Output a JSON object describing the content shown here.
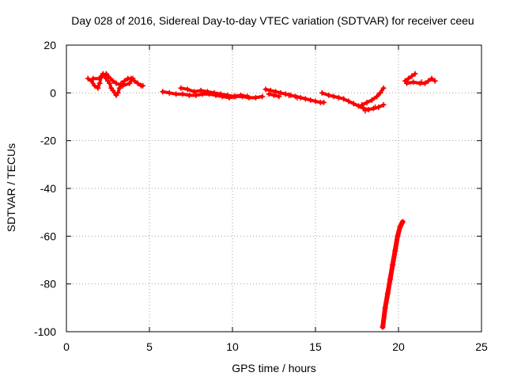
{
  "chart_data": {
    "type": "scatter",
    "title": "Day 028 of 2016, Sidereal Day-to-day VTEC variation (SDTVAR) for receiver ceeu",
    "xlabel": "GPS time / hours",
    "ylabel": "SDTVAR / TECUs",
    "xlim": [
      0,
      25
    ],
    "ylim": [
      -100,
      20
    ],
    "xticks": [
      "0",
      "5",
      "10",
      "15",
      "20",
      "25"
    ],
    "yticks": [
      "20",
      "0",
      "-20",
      "-40",
      "-60",
      "-80",
      "-100"
    ],
    "grid": true,
    "marker": "plus",
    "color": "#ff0000",
    "series": [
      {
        "points": [
          [
            1.3,
            6
          ],
          [
            1.5,
            5
          ],
          [
            1.7,
            3
          ],
          [
            1.9,
            2
          ],
          [
            2.0,
            4
          ],
          [
            2.1,
            7
          ],
          [
            2.2,
            8
          ],
          [
            2.3,
            7
          ],
          [
            2.4,
            6
          ],
          [
            2.5,
            5
          ],
          [
            2.6,
            4
          ],
          [
            2.7,
            2
          ],
          [
            2.8,
            1
          ],
          [
            3.0,
            -1
          ],
          [
            3.1,
            0
          ],
          [
            3.2,
            2
          ],
          [
            3.3,
            4
          ],
          [
            3.5,
            5
          ],
          [
            3.7,
            6
          ],
          [
            3.9,
            6
          ],
          [
            4.1,
            5
          ],
          [
            4.3,
            4
          ],
          [
            4.5,
            3
          ],
          [
            4.6,
            3
          ],
          [
            1.6,
            6
          ],
          [
            2.0,
            6
          ],
          [
            2.4,
            8
          ],
          [
            2.8,
            5
          ],
          [
            3.0,
            4
          ],
          [
            3.4,
            3
          ],
          [
            3.8,
            4
          ],
          [
            4.0,
            6
          ],
          [
            5.8,
            0.5
          ],
          [
            6.2,
            0
          ],
          [
            6.6,
            -0.5
          ],
          [
            7.0,
            -0.5
          ],
          [
            7.4,
            -1
          ],
          [
            7.8,
            -1
          ],
          [
            8.2,
            -0.5
          ],
          [
            8.6,
            -0.5
          ],
          [
            9.0,
            -1
          ],
          [
            9.4,
            -1.5
          ],
          [
            9.8,
            -2
          ],
          [
            10.2,
            -1.5
          ],
          [
            10.6,
            -1.5
          ],
          [
            11.0,
            -2
          ],
          [
            11.4,
            -2
          ],
          [
            11.8,
            -1.5
          ],
          [
            6.9,
            2
          ],
          [
            7.3,
            1.5
          ],
          [
            7.7,
            0.5
          ],
          [
            8.1,
            1
          ],
          [
            8.5,
            0.5
          ],
          [
            8.9,
            0
          ],
          [
            9.3,
            -0.5
          ],
          [
            9.7,
            -1
          ],
          [
            10.1,
            -1.5
          ],
          [
            10.5,
            -1
          ],
          [
            10.9,
            -1.5
          ],
          [
            12.0,
            1.5
          ],
          [
            12.3,
            1
          ],
          [
            12.6,
            0.5
          ],
          [
            12.9,
            0
          ],
          [
            13.2,
            -0.5
          ],
          [
            13.5,
            -1
          ],
          [
            13.8,
            -1.5
          ],
          [
            14.1,
            -2
          ],
          [
            14.4,
            -2.5
          ],
          [
            14.7,
            -3
          ],
          [
            15.0,
            -3.5
          ],
          [
            15.3,
            -4
          ],
          [
            15.5,
            -4
          ],
          [
            12.2,
            -0.5
          ],
          [
            12.5,
            -1
          ],
          [
            12.8,
            -1.5
          ],
          [
            13.4,
            -1
          ],
          [
            13.9,
            -2
          ],
          [
            15.4,
            0
          ],
          [
            15.8,
            -1
          ],
          [
            16.1,
            -1.5
          ],
          [
            16.4,
            -2
          ],
          [
            16.7,
            -2.5
          ],
          [
            17.0,
            -3.5
          ],
          [
            17.3,
            -4.5
          ],
          [
            17.6,
            -5.5
          ],
          [
            17.9,
            -6.5
          ],
          [
            18.2,
            -7
          ],
          [
            18.5,
            -6.5
          ],
          [
            18.8,
            -6
          ],
          [
            19.1,
            -5
          ],
          [
            17.8,
            -5
          ],
          [
            18.1,
            -4
          ],
          [
            18.4,
            -3
          ],
          [
            18.7,
            -1.5
          ],
          [
            18.9,
            0
          ],
          [
            19.1,
            2
          ],
          [
            18.6,
            -6
          ],
          [
            18.0,
            -7.5
          ],
          [
            20.4,
            5
          ],
          [
            20.6,
            6
          ],
          [
            20.8,
            7
          ],
          [
            21.0,
            8
          ],
          [
            20.5,
            4
          ],
          [
            20.9,
            4.5
          ],
          [
            21.3,
            4
          ],
          [
            21.6,
            4
          ],
          [
            21.8,
            5
          ],
          [
            22.0,
            6
          ],
          [
            22.2,
            5
          ],
          [
            21.4,
            4.5
          ]
        ]
      },
      {
        "points": [
          [
            19.05,
            -98
          ],
          [
            19.2,
            -90
          ],
          [
            19.35,
            -84
          ],
          [
            19.5,
            -78
          ],
          [
            19.65,
            -72
          ],
          [
            19.8,
            -66
          ],
          [
            19.95,
            -60
          ],
          [
            20.1,
            -56
          ],
          [
            20.25,
            -54
          ]
        ],
        "style": "dense-line"
      }
    ]
  }
}
